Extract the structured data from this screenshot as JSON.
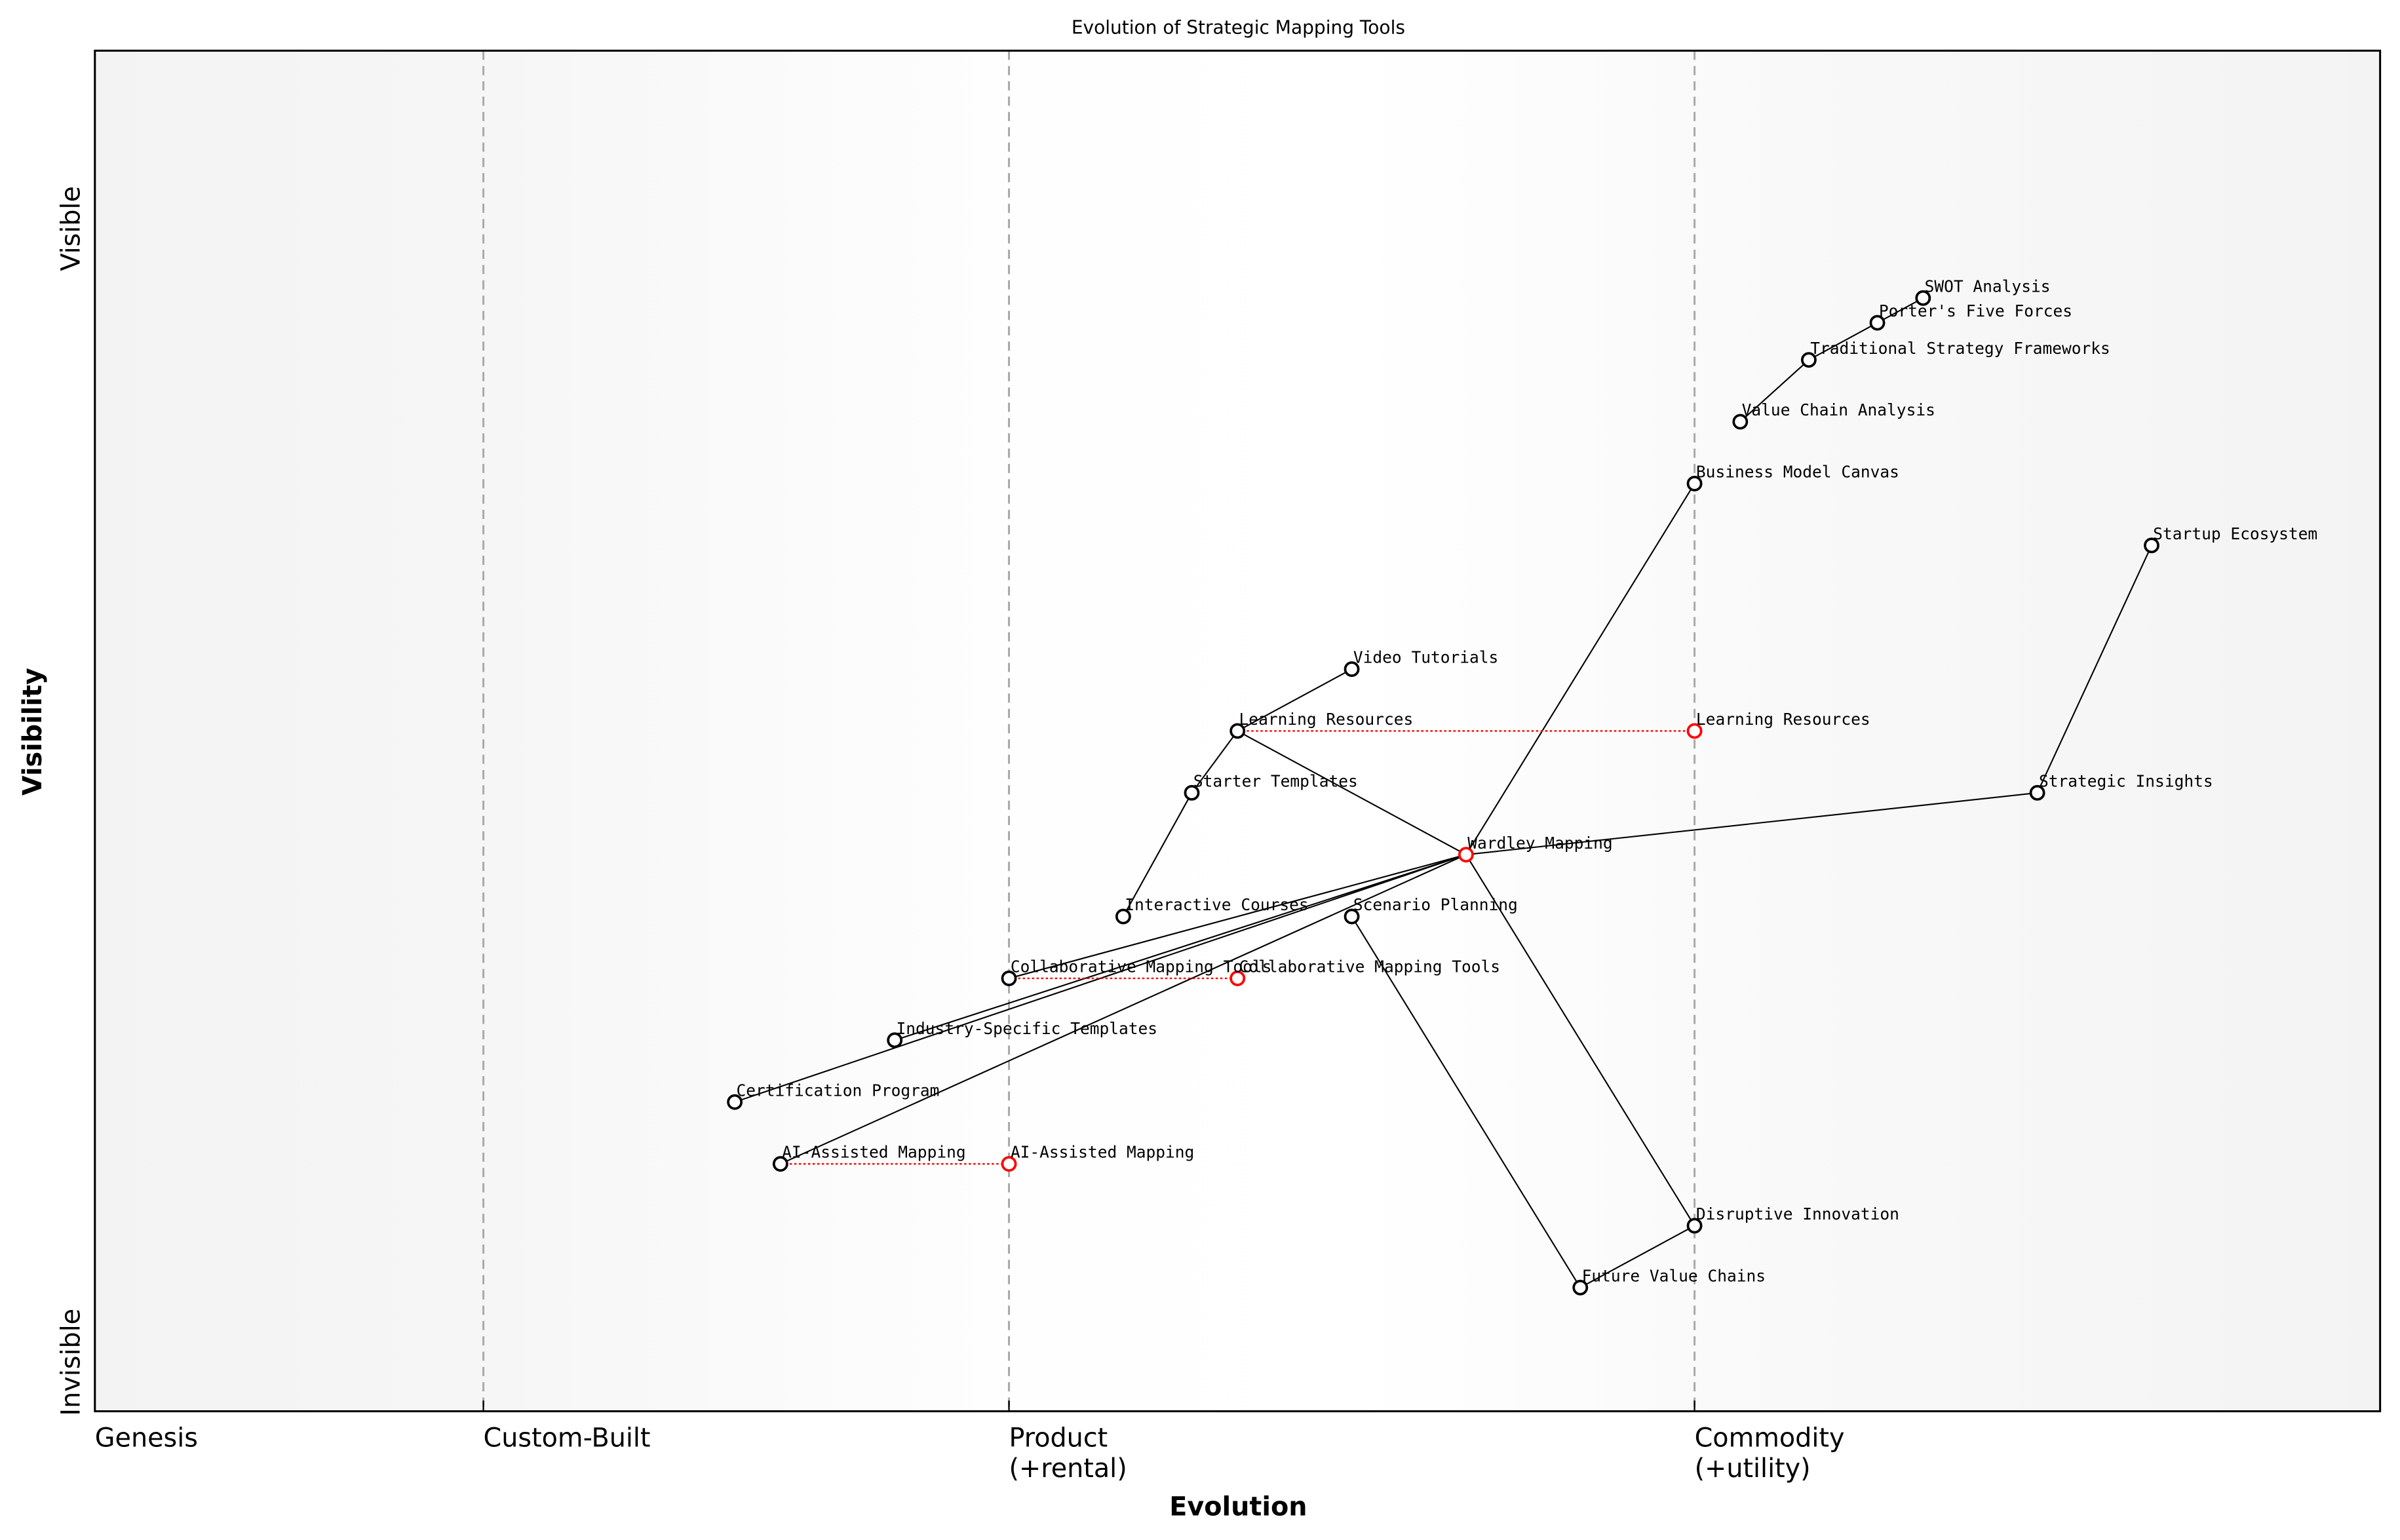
{
  "chart_data": {
    "type": "wardley-map",
    "title": "Evolution of Strategic Mapping Tools",
    "xlabel": "Evolution",
    "ylabel": "Visibility",
    "xlim": [
      0,
      1
    ],
    "ylim": [
      0,
      1.1
    ],
    "stages": [
      {
        "label": "Genesis",
        "label2": "",
        "at": 0.0
      },
      {
        "label": "Custom-Built",
        "label2": "",
        "at": 0.17
      },
      {
        "label": "Product",
        "label2": "(+rental)",
        "at": 0.4
      },
      {
        "label": "Commodity",
        "label2": "(+utility)",
        "at": 0.7
      }
    ],
    "y_top_label": "Visible",
    "y_bottom_label": "Invisible",
    "colors": {
      "node": "#000000",
      "evolved": "#ff0000",
      "divider": "#aaaaaa",
      "evolve_line": "#ff0000"
    },
    "nodes": [
      {
        "name": "Wardley Mapping",
        "evolution": 0.6,
        "visibility": 0.45,
        "highlight": true
      },
      {
        "name": "Business Model Canvas",
        "evolution": 0.7,
        "visibility": 0.75
      },
      {
        "name": "Value Chain Analysis",
        "evolution": 0.72,
        "visibility": 0.8
      },
      {
        "name": "Traditional Strategy Frameworks",
        "evolution": 0.75,
        "visibility": 0.85
      },
      {
        "name": "Porter's Five Forces",
        "evolution": 0.78,
        "visibility": 0.88
      },
      {
        "name": "SWOT Analysis",
        "evolution": 0.8,
        "visibility": 0.9
      },
      {
        "name": "Startup Ecosystem",
        "evolution": 0.9,
        "visibility": 0.7
      },
      {
        "name": "Strategic Insights",
        "evolution": 0.85,
        "visibility": 0.5
      },
      {
        "name": "Video Tutorials",
        "evolution": 0.55,
        "visibility": 0.6
      },
      {
        "name": "Learning Resources",
        "evolution": 0.5,
        "visibility": 0.55
      },
      {
        "name": "Starter Templates",
        "evolution": 0.48,
        "visibility": 0.5
      },
      {
        "name": "Interactive Courses",
        "evolution": 0.45,
        "visibility": 0.4
      },
      {
        "name": "Scenario Planning",
        "evolution": 0.55,
        "visibility": 0.4
      },
      {
        "name": "Collaborative Mapping Tools",
        "evolution": 0.4,
        "visibility": 0.35
      },
      {
        "name": "Industry-Specific Templates",
        "evolution": 0.35,
        "visibility": 0.3
      },
      {
        "name": "Certification Program",
        "evolution": 0.28,
        "visibility": 0.25
      },
      {
        "name": "AI-Assisted Mapping",
        "evolution": 0.3,
        "visibility": 0.2
      },
      {
        "name": "Future Value Chains",
        "evolution": 0.65,
        "visibility": 0.1
      },
      {
        "name": "Disruptive Innovation",
        "evolution": 0.7,
        "visibility": 0.15
      }
    ],
    "edges": [
      [
        "Wardley Mapping",
        "Business Model Canvas"
      ],
      [
        "Wardley Mapping",
        "Learning Resources"
      ],
      [
        "Wardley Mapping",
        "Strategic Insights"
      ],
      [
        "Wardley Mapping",
        "Disruptive Innovation"
      ],
      [
        "Wardley Mapping",
        "Collaborative Mapping Tools"
      ],
      [
        "Wardley Mapping",
        "Industry-Specific Templates"
      ],
      [
        "Wardley Mapping",
        "Certification Program"
      ],
      [
        "Wardley Mapping",
        "AI-Assisted Mapping"
      ],
      [
        "Learning Resources",
        "Video Tutorials"
      ],
      [
        "Learning Resources",
        "Starter Templates"
      ],
      [
        "Starter Templates",
        "Interactive Courses"
      ],
      [
        "Scenario Planning",
        "Future Value Chains"
      ],
      [
        "Future Value Chains",
        "Disruptive Innovation"
      ],
      [
        "Strategic Insights",
        "Startup Ecosystem"
      ],
      [
        "Value Chain Analysis",
        "Traditional Strategy Frameworks"
      ],
      [
        "Traditional Strategy Frameworks",
        "Porter's Five Forces"
      ],
      [
        "Porter's Five Forces",
        "SWOT Analysis"
      ]
    ],
    "evolutions": [
      {
        "name": "Learning Resources",
        "from": 0.5,
        "to": 0.7
      },
      {
        "name": "Collaborative Mapping Tools",
        "from": 0.4,
        "to": 0.5
      },
      {
        "name": "AI-Assisted Mapping",
        "from": 0.3,
        "to": 0.4
      }
    ]
  }
}
